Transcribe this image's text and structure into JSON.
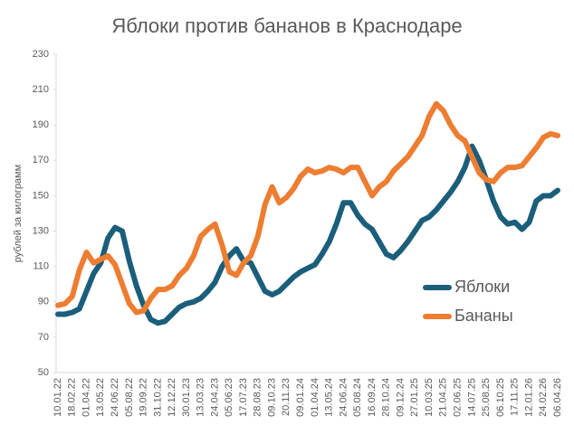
{
  "chart_data": {
    "type": "line",
    "title": "Яблоки против бананов в Краснодаре",
    "y_label": "рублей за килограмм",
    "categories": [
      "10.01.22",
      null,
      "18.02.22",
      null,
      "01.04.22",
      null,
      "13.05.22",
      null,
      "24.06.22",
      null,
      "05.08.22",
      null,
      "19.09.22",
      null,
      "31.10.22",
      null,
      "12.12.22",
      null,
      "30.01.23",
      null,
      "13.03.23",
      null,
      "24.04.23",
      null,
      "05.06.23",
      null,
      "17.07.23",
      null,
      "28.08.23",
      null,
      "09.10.23",
      null,
      "20.11.23",
      null,
      "09.01.24",
      null,
      "01.04.24",
      null,
      "13.05.24",
      null,
      "24.06.24",
      null,
      "05.08.24",
      null,
      "16.09.24",
      null,
      "28.10.24",
      null,
      "09.12.24",
      null,
      "27.01.25",
      null,
      "10.03.25",
      null,
      "21.04.25",
      null,
      "02.06.25",
      null,
      "14.07.25",
      null,
      "25.08.25",
      null,
      "06.10.25",
      null,
      "17.11.25",
      null,
      "12.01.26",
      null,
      "24.02.26",
      null,
      "06.04.26"
    ],
    "series": [
      {
        "name": "Яблоки",
        "color": "#1b5e7b",
        "values": [
          83,
          83,
          84,
          86,
          96,
          106,
          112,
          126,
          132,
          130,
          113,
          99,
          88,
          80,
          78,
          79,
          83,
          87,
          89,
          90,
          92,
          96,
          101,
          110,
          116,
          120,
          113,
          112,
          104,
          96,
          94,
          96,
          100,
          104,
          107,
          109,
          111,
          117,
          124,
          134,
          146,
          146,
          139,
          134,
          131,
          124,
          117,
          115,
          119,
          124,
          130,
          136,
          138,
          142,
          147,
          152,
          158,
          166,
          178,
          170,
          159,
          147,
          138,
          134,
          135,
          131,
          135,
          147,
          150,
          150,
          153
        ]
      },
      {
        "name": "Бананы",
        "color": "#ed7d31",
        "values": [
          88,
          89,
          93,
          108,
          118,
          112,
          114,
          116,
          111,
          100,
          89,
          84,
          85,
          92,
          97,
          97,
          99,
          105,
          109,
          116,
          127,
          131,
          134,
          122,
          107,
          105,
          112,
          116,
          127,
          145,
          155,
          146,
          149,
          154,
          161,
          165,
          163,
          164,
          166,
          165,
          163,
          166,
          166,
          158,
          150,
          155,
          158,
          164,
          168,
          172,
          178,
          184,
          195,
          202,
          198,
          190,
          184,
          181,
          172,
          163,
          159,
          158,
          163,
          166,
          166,
          167,
          172,
          177,
          183,
          185,
          184
        ]
      }
    ],
    "ylim": [
      50,
      230
    ],
    "yticks": [
      50,
      70,
      90,
      110,
      130,
      150,
      170,
      190,
      210,
      230
    ],
    "legend": "right"
  }
}
